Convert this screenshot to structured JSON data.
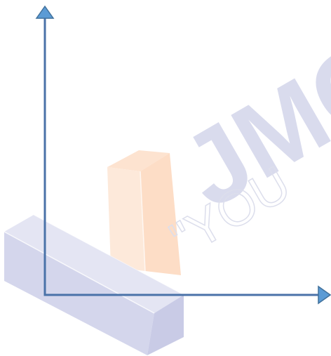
{
  "diagram": {
    "axes": {
      "color": "#4a72a8",
      "vertical_axis": "y-axis-arrow",
      "horizontal_axis": "x-axis-arrow"
    },
    "watermark": {
      "logo_text": "JMC",
      "tagline_text": "\"YOU",
      "logo_color": "#d6d8ec",
      "tagline_color": "#e2e4f0",
      "blocks": {
        "upright_block_color": "#fde6d4",
        "lying_block_color": "#dcdcef"
      }
    }
  }
}
